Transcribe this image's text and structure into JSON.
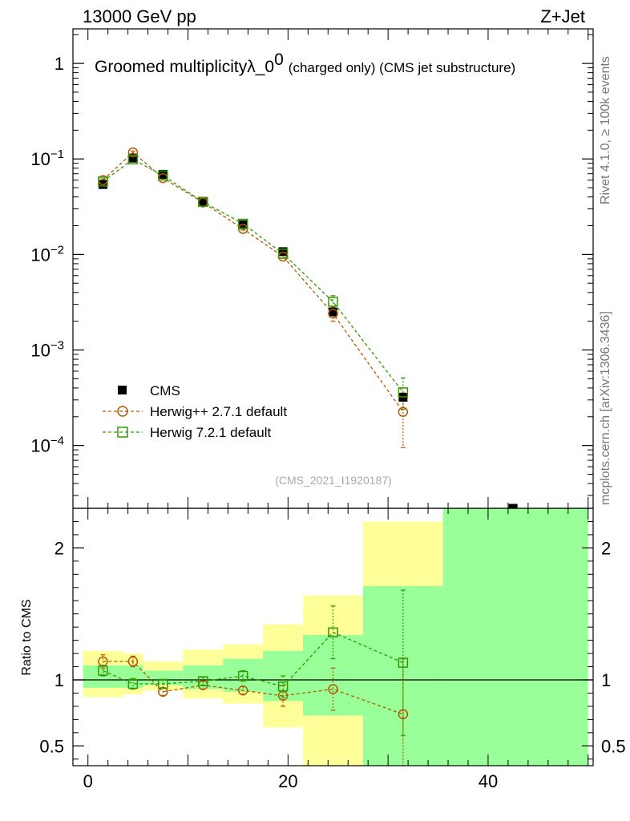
{
  "header": {
    "energy_label": "13000 GeV pp",
    "process_label": "Z+Jet"
  },
  "side_labels": {
    "rivet": "Rivet 4.1.0, ≥ 100k events",
    "mcplots": "mcplots.cern.ch [arXiv:1306.3436]"
  },
  "colors": {
    "cms": "#000000",
    "herwigpp": "#b35900",
    "herwig7": "#339900",
    "band_yellow": "#ffff99",
    "band_green": "#99ff99"
  },
  "chart_data": [
    {
      "type": "scatter",
      "panel": "main",
      "title": "Groomed multiplicityλ_0",
      "title_superscript": "0",
      "title_suffix": "(charged only) (CMS jet substructure)",
      "watermark": "(CMS_2021_I1920187)",
      "yscale": "log",
      "ylim": [
        2.2e-05,
        2.3
      ],
      "xlim": [
        -1.5,
        50.5
      ],
      "y_ticks": [
        {
          "base": "1",
          "exp": ""
        },
        {
          "base": "10",
          "exp": "−1"
        },
        {
          "base": "10",
          "exp": "−2"
        },
        {
          "base": "10",
          "exp": "−3"
        },
        {
          "base": "10",
          "exp": "−4"
        }
      ],
      "y_tick_values": [
        1,
        0.1,
        0.01,
        0.001,
        0.0001
      ],
      "series": [
        {
          "name": "CMS",
          "marker": "filled-square",
          "x": [
            1.5,
            4.5,
            7.5,
            11.5,
            15.5,
            19.5,
            24.5,
            31.5,
            42.5
          ],
          "y": [
            0.054,
            0.102,
            0.069,
            0.036,
            0.0205,
            0.0107,
            0.0025,
            0.00032,
            2.2e-05
          ]
        },
        {
          "name": "Herwig++ 2.7.1 default",
          "marker": "open-circle",
          "x": [
            1.5,
            4.5,
            7.5,
            11.5,
            15.5,
            19.5,
            24.5,
            31.5
          ],
          "y": [
            0.06,
            0.117,
            0.063,
            0.035,
            0.0185,
            0.0095,
            0.0024,
            0.000225
          ],
          "yerr_low": [
            0.002,
            0.004,
            0.002,
            0.001,
            0.0005,
            0.0004,
            0.0004,
            0.00013
          ],
          "yerr_high": [
            0.002,
            0.004,
            0.002,
            0.001,
            0.0005,
            0.0004,
            0.0004,
            0.00013
          ]
        },
        {
          "name": "Herwig 7.2.1 default",
          "marker": "open-square",
          "x": [
            1.5,
            4.5,
            7.5,
            11.5,
            15.5,
            19.5,
            24.5,
            31.5
          ],
          "y": [
            0.058,
            0.099,
            0.067,
            0.0355,
            0.021,
            0.0102,
            0.0032,
            0.00036
          ],
          "yerr_low": [
            0.002,
            0.003,
            0.002,
            0.001,
            0.0005,
            0.0004,
            0.0005,
            0.00012
          ],
          "yerr_high": [
            0.002,
            0.003,
            0.002,
            0.001,
            0.0005,
            0.0004,
            0.0005,
            0.00015
          ]
        }
      ]
    },
    {
      "type": "scatter",
      "panel": "ratio",
      "ylabel": "Ratio to CMS",
      "ylim": [
        0.35,
        2.3
      ],
      "xlim": [
        -1.5,
        50.5
      ],
      "y_ticks": [
        "0.5",
        "1",
        "2"
      ],
      "y_tick_values": [
        0.5,
        1,
        2
      ],
      "x_ticks": [
        "0",
        "20",
        "40"
      ],
      "x_tick_values": [
        0,
        20,
        40
      ],
      "bands": [
        {
          "x0": -0.5,
          "x1": 3.5,
          "y_low": 0.87,
          "y_high": 1.22,
          "g_low": 0.94,
          "g_high": 1.11
        },
        {
          "x0": 3.5,
          "x1": 5.5,
          "y_low": 0.89,
          "y_high": 1.2,
          "g_low": 0.94,
          "g_high": 1.11
        },
        {
          "x0": 5.5,
          "x1": 9.5,
          "y_low": 0.92,
          "y_high": 1.14,
          "g_low": 0.96,
          "g_high": 1.07
        },
        {
          "x0": 9.5,
          "x1": 13.5,
          "y_low": 0.86,
          "y_high": 1.23,
          "g_low": 0.93,
          "g_high": 1.11
        },
        {
          "x0": 13.5,
          "x1": 17.5,
          "y_low": 0.82,
          "y_high": 1.27,
          "g_low": 0.91,
          "g_high": 1.16
        },
        {
          "x0": 17.5,
          "x1": 21.5,
          "y_low": 0.64,
          "y_high": 1.42,
          "g_low": 0.84,
          "g_high": 1.22
        },
        {
          "x0": 21.5,
          "x1": 27.5,
          "y_low": 0.35,
          "y_high": 1.64,
          "g_low": 0.73,
          "g_high": 1.34
        },
        {
          "x0": 27.5,
          "x1": 35.5,
          "y_low": 0.35,
          "y_high": 2.2,
          "g_low": 0.35,
          "g_high": 1.71
        },
        {
          "x0": 35.5,
          "x1": 50.0,
          "y_low": 0.35,
          "y_high": 2.3,
          "g_low": 0.35,
          "g_high": 2.3
        }
      ],
      "series": [
        {
          "name": "Herwig++ 2.7.1 default",
          "marker": "open-circle",
          "x": [
            1.5,
            4.5,
            7.5,
            11.5,
            15.5,
            19.5,
            24.5,
            31.5
          ],
          "y": [
            1.14,
            1.14,
            0.91,
            0.96,
            0.92,
            0.88,
            0.93,
            0.74
          ],
          "yerr": [
            0.05,
            0.04,
            0.03,
            0.03,
            0.03,
            0.08,
            0.16,
            0.42
          ]
        },
        {
          "name": "Herwig 7.2.1 default",
          "marker": "open-square",
          "x": [
            1.5,
            4.5,
            7.5,
            11.5,
            15.5,
            19.5,
            24.5,
            31.5
          ],
          "y": [
            1.07,
            0.97,
            0.97,
            0.99,
            1.03,
            0.95,
            1.36,
            1.13
          ],
          "yerr": [
            0.04,
            0.04,
            0.03,
            0.03,
            0.04,
            0.08,
            0.2,
            0.55
          ]
        }
      ]
    }
  ]
}
